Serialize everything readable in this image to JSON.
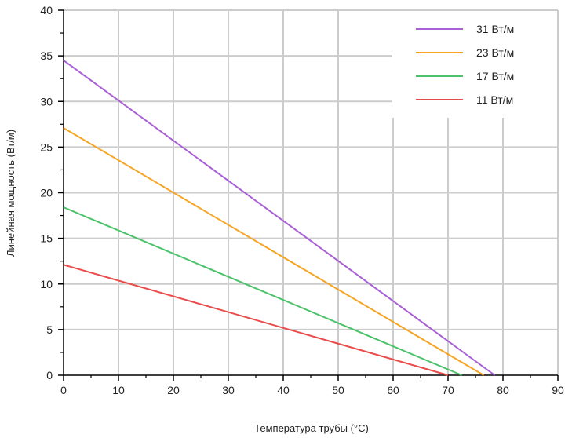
{
  "chart_data": {
    "type": "line",
    "xlabel": "Температура трубы (°C)",
    "ylabel": "Линейная мощность (Вт/м)",
    "xlim": [
      0,
      90
    ],
    "ylim": [
      0,
      40
    ],
    "xticks": [
      0,
      10,
      20,
      30,
      40,
      50,
      60,
      70,
      80,
      90
    ],
    "yticks": [
      0,
      5,
      10,
      15,
      20,
      25,
      30,
      35,
      40
    ],
    "grid": true,
    "legend_position": "top-right",
    "series": [
      {
        "name": "31 Вт/м",
        "color": "#a95fd6",
        "x": [
          0,
          78.5
        ],
        "y": [
          34.5,
          0
        ]
      },
      {
        "name": "23 Вт/м",
        "color": "#f5a524",
        "x": [
          0,
          76.5
        ],
        "y": [
          27.1,
          0
        ]
      },
      {
        "name": "17 Вт/м",
        "color": "#4cc26a",
        "x": [
          0,
          72.5
        ],
        "y": [
          18.4,
          0
        ]
      },
      {
        "name": "11 Вт/м",
        "color": "#ea4b4b",
        "x": [
          0,
          70.0
        ],
        "y": [
          12.1,
          0
        ]
      }
    ]
  }
}
